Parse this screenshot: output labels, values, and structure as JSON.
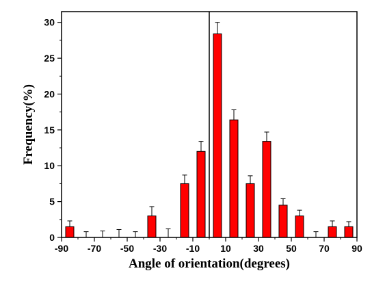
{
  "chart_data": {
    "type": "bar",
    "xlabel": "Angle of orientation(degrees)",
    "ylabel": "Frequency(%)",
    "xlim": [
      -90,
      90
    ],
    "ylim": [
      0,
      31.5
    ],
    "bar_width": 5,
    "x_ticks": [
      -90,
      -70,
      -50,
      -30,
      -10,
      10,
      30,
      50,
      70,
      90
    ],
    "x_tick_labels": [
      "-90",
      "-70",
      "-50",
      "-30",
      "-10",
      "10",
      "30",
      "50",
      "70",
      "90"
    ],
    "y_ticks": [
      0,
      5,
      10,
      15,
      20,
      25,
      30
    ],
    "y_tick_labels": [
      "0",
      "5",
      "10",
      "15",
      "20",
      "25",
      "30"
    ],
    "reference_line_x": 0,
    "bar_color": "#ff0000",
    "grid": false,
    "series": [
      {
        "x": [
          -85,
          -75,
          -65,
          -55,
          -45,
          -35,
          -25,
          -15,
          -5,
          5,
          15,
          25,
          35,
          45,
          55,
          65,
          75,
          85
        ],
        "values": [
          1.5,
          0,
          0,
          0,
          0,
          3.0,
          0,
          7.5,
          12.0,
          28.4,
          16.4,
          7.5,
          13.4,
          4.5,
          3.0,
          0,
          1.5,
          1.5
        ],
        "errors": [
          0.8,
          0.8,
          0.9,
          1.1,
          0.8,
          1.3,
          1.2,
          1.2,
          1.4,
          1.6,
          1.4,
          1.1,
          1.3,
          0.9,
          0.8,
          0.8,
          0.8,
          0.7
        ]
      }
    ]
  }
}
